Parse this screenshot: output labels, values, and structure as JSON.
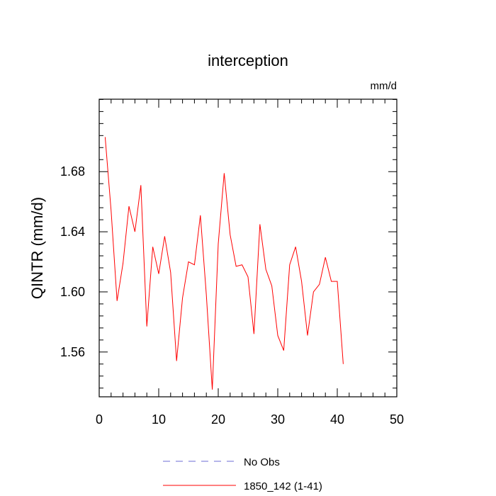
{
  "chart_data": {
    "type": "line",
    "title": "interception",
    "units_label": "mm/d",
    "xlabel": "",
    "ylabel": "QINTR  (mm/d)",
    "xlim": [
      0,
      50
    ],
    "ylim": [
      1.5302,
      1.7282
    ],
    "x_ticks": [
      0,
      10,
      20,
      30,
      40,
      50
    ],
    "x_tick_labels": [
      "0",
      "10",
      "20",
      "30",
      "40",
      "50"
    ],
    "y_ticks": [
      1.56,
      1.6,
      1.64,
      1.68
    ],
    "y_tick_labels": [
      "1.56",
      "1.60",
      "1.64",
      "1.68"
    ],
    "grid": false,
    "legend_position": "bottom",
    "series": [
      {
        "name": "No Obs",
        "color": "#6b6bd6",
        "dash": "dashed",
        "x": [],
        "values": []
      },
      {
        "name": "1850_142 (1-41)",
        "color": "#ff0000",
        "dash": "solid",
        "x": [
          1,
          2,
          3,
          4,
          5,
          6,
          7,
          8,
          9,
          10,
          11,
          12,
          13,
          14,
          15,
          16,
          17,
          18,
          19,
          20,
          21,
          22,
          23,
          24,
          25,
          26,
          27,
          28,
          29,
          30,
          31,
          32,
          33,
          34,
          35,
          36,
          37,
          38,
          39,
          40,
          41
        ],
        "values": [
          1.703,
          1.654,
          1.594,
          1.619,
          1.657,
          1.64,
          1.671,
          1.577,
          1.63,
          1.612,
          1.637,
          1.613,
          1.554,
          1.596,
          1.62,
          1.618,
          1.651,
          1.598,
          1.535,
          1.632,
          1.679,
          1.638,
          1.617,
          1.618,
          1.61,
          1.572,
          1.645,
          1.615,
          1.604,
          1.571,
          1.561,
          1.618,
          1.63,
          1.607,
          1.571,
          1.6,
          1.605,
          1.623,
          1.607,
          1.607,
          1.552
        ]
      }
    ]
  }
}
